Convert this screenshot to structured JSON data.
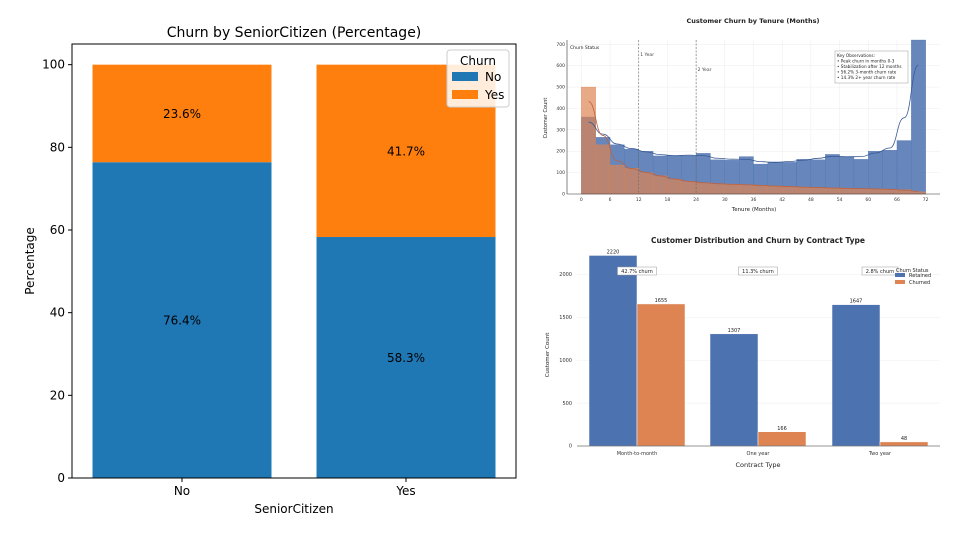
{
  "chart_data": [
    {
      "type": "bar",
      "stacked": true,
      "title": "Churn by SeniorCitizen (Percentage)",
      "xlabel": "SeniorCitizen",
      "ylabel": "Percentage",
      "categories": [
        "No",
        "Yes"
      ],
      "series": [
        {
          "name": "No",
          "values": [
            76.4,
            58.3
          ],
          "color": "#1f77b4"
        },
        {
          "name": "Yes",
          "values": [
            23.6,
            41.7
          ],
          "color": "#ff7f0e"
        }
      ],
      "data_labels": [
        [
          "76.4%",
          "58.3%"
        ],
        [
          "23.6%",
          "41.7%"
        ]
      ],
      "ylim": [
        0,
        105
      ],
      "yticks": [
        0,
        20,
        40,
        60,
        80,
        100
      ],
      "legend_title": "Churn",
      "legend_position": "top-right",
      "grid": false
    },
    {
      "type": "histogram",
      "title": "Customer Churn by Tenure (Months)",
      "xlabel": "Tenure (Months)",
      "ylabel": "Customer Count",
      "legend_title": "Churn Status",
      "xlim": [
        -3,
        75
      ],
      "ylim": [
        0,
        720
      ],
      "xticks": [
        0,
        6,
        12,
        18,
        24,
        30,
        36,
        42,
        48,
        54,
        60,
        66,
        72
      ],
      "yticks": [
        0,
        100,
        200,
        300,
        400,
        500,
        600,
        700
      ],
      "bin_edges": [
        0,
        3,
        6,
        9,
        12,
        15,
        18,
        21,
        24,
        27,
        30,
        33,
        36,
        39,
        42,
        45,
        48,
        51,
        54,
        57,
        60,
        63,
        66,
        69,
        72
      ],
      "series": [
        {
          "name": "Retained",
          "color": "#4c72b0",
          "values": [
            360,
            265,
            230,
            210,
            200,
            178,
            180,
            178,
            190,
            160,
            158,
            175,
            140,
            150,
            148,
            162,
            160,
            185,
            175,
            162,
            200,
            205,
            250,
            720
          ]
        },
        {
          "name": "Churned",
          "color": "#dd8452",
          "values": [
            500,
            230,
            135,
            120,
            100,
            85,
            68,
            58,
            52,
            48,
            45,
            44,
            40,
            37,
            35,
            32,
            30,
            28,
            26,
            25,
            24,
            22,
            20,
            10
          ]
        }
      ],
      "reference_lines": [
        {
          "x": 12,
          "label": "1 Year"
        },
        {
          "x": 24,
          "label": "2 Year"
        }
      ],
      "annotation": {
        "title": "Key Observations:",
        "lines": [
          "• Peak churn in months 0-3",
          "• Stabilization after 12 months",
          "• 56.2% 3-month churn rate",
          "• 14.3% 2+ year churn rate"
        ]
      },
      "grid": true
    },
    {
      "type": "bar",
      "title": "Customer Distribution and Churn by Contract Type",
      "xlabel": "Contract Type",
      "ylabel": "Customer Count",
      "categories": [
        "Month-to-month",
        "One year",
        "Two year"
      ],
      "series": [
        {
          "name": "Retained",
          "values": [
            2220,
            1307,
            1647
          ],
          "color": "#4c72b0"
        },
        {
          "name": "Churned",
          "values": [
            1655,
            166,
            48
          ],
          "color": "#dd8452"
        }
      ],
      "data_labels": [
        [
          "2220",
          "1307",
          "1647"
        ],
        [
          "1655",
          "166",
          "48"
        ]
      ],
      "churn_labels": [
        "42.7% churn",
        "11.3% churn",
        "2.8% churn"
      ],
      "ylim": [
        0,
        2260
      ],
      "yticks": [
        0,
        500,
        1000,
        1500,
        2000
      ],
      "legend_title": "Churn Status",
      "legend_position": "top-right",
      "grid": true
    }
  ]
}
